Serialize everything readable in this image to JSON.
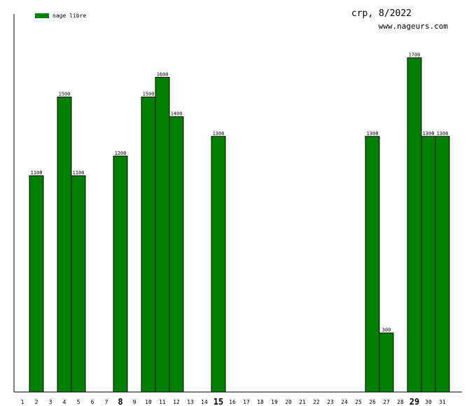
{
  "header": {
    "title": "crp, 8/2022",
    "website": "www.nageurs.com"
  },
  "legend": {
    "label": "nage libre",
    "color": "#008000",
    "placement": "top-left"
  },
  "chart_data": {
    "type": "bar",
    "title": "crp, 8/2022",
    "xlabel": "",
    "ylabel": "",
    "categories": [
      "1",
      "2",
      "3",
      "4",
      "5",
      "6",
      "7",
      "8",
      "9",
      "10",
      "11",
      "12",
      "13",
      "14",
      "15",
      "16",
      "17",
      "18",
      "19",
      "20",
      "21",
      "22",
      "23",
      "24",
      "25",
      "26",
      "27",
      "28",
      "29",
      "30",
      "31"
    ],
    "bold_categories": [
      "8",
      "15",
      "29"
    ],
    "series": [
      {
        "name": "nage libre",
        "color": "#008000",
        "values": [
          0,
          1100,
          0,
          1500,
          1100,
          0,
          0,
          1200,
          0,
          1500,
          1600,
          1400,
          0,
          0,
          1300,
          0,
          0,
          0,
          0,
          0,
          0,
          0,
          0,
          0,
          0,
          1300,
          300,
          0,
          1700,
          1300,
          1300
        ]
      }
    ],
    "ylim": [
      0,
      1800
    ],
    "grid": false,
    "legend_position": "top-left"
  }
}
